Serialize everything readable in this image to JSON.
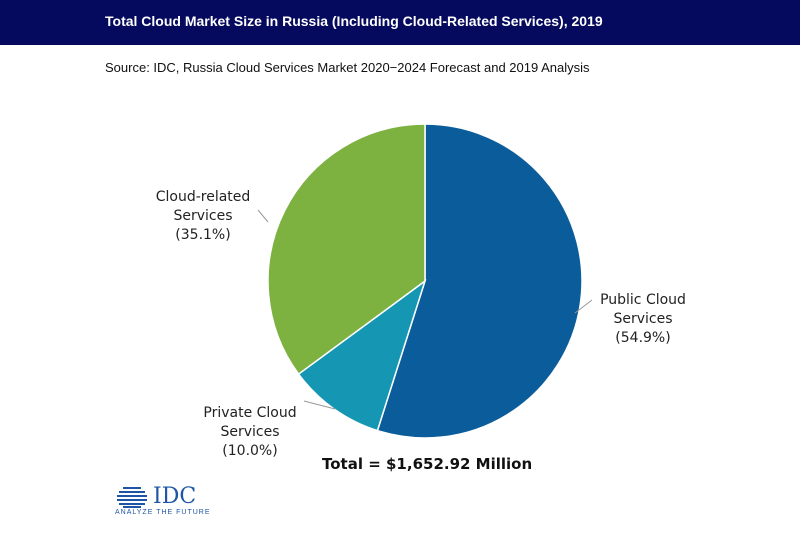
{
  "header": {
    "title": "Total Cloud Market Size in Russia (Including Cloud-Related Services), 2019",
    "subtitle": "Source: IDC, Russia Cloud Services Market 2020−2024 Forecast and 2019 Analysis"
  },
  "chart_data": {
    "type": "pie",
    "slices": [
      {
        "label_lines": [
          "Public Cloud",
          "Services",
          "(54.9%)"
        ],
        "value": 54.9,
        "color": "#0b5c9a"
      },
      {
        "label_lines": [
          "Private Cloud",
          "Services",
          "(10.0%)"
        ],
        "value": 10.0,
        "color": "#1597b4"
      },
      {
        "label_lines": [
          "Cloud-related",
          "Services",
          "(35.1%)"
        ],
        "value": 35.1,
        "color": "#7db140"
      }
    ],
    "start_at": "12 o'clock",
    "direction": "clockwise",
    "total_label": "Total = $1,652.92 Million",
    "legend": "none"
  },
  "logo": {
    "wordmark": "IDC",
    "tagline": "ANALYZE THE FUTURE",
    "color": "#1f55a5"
  }
}
